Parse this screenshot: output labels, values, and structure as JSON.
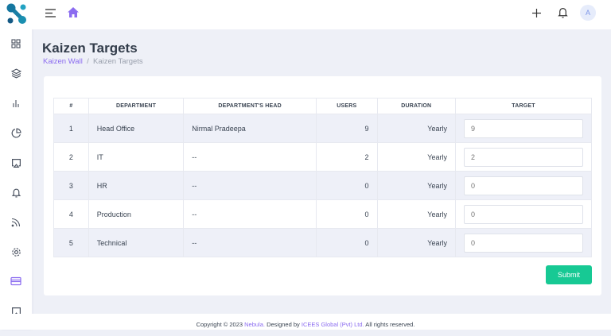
{
  "page": {
    "title": "Kaizen Targets",
    "breadcrumb": [
      {
        "label": "Kaizen Wall"
      },
      {
        "label": "Kaizen Targets"
      }
    ],
    "breadcrumb_sep": "/"
  },
  "topbar": {
    "avatar_initial": "A"
  },
  "table": {
    "headers": [
      "#",
      "DEPARTMENT",
      "DEPARTMENT'S HEAD",
      "USERS",
      "DURATION",
      "TARGET"
    ],
    "rows": [
      {
        "no": "1",
        "department": "Head Office",
        "head": "Nirmal Pradeepa",
        "users": "9",
        "duration": "Yearly",
        "target": "9"
      },
      {
        "no": "2",
        "department": "IT",
        "head": "--",
        "users": "2",
        "duration": "Yearly",
        "target": "2"
      },
      {
        "no": "3",
        "department": "HR",
        "head": "--",
        "users": "0",
        "duration": "Yearly",
        "target": "0"
      },
      {
        "no": "4",
        "department": "Production",
        "head": "--",
        "users": "0",
        "duration": "Yearly",
        "target": "0"
      },
      {
        "no": "5",
        "department": "Technical",
        "head": "--",
        "users": "0",
        "duration": "Yearly",
        "target": "0"
      }
    ]
  },
  "submit_label": "Submit",
  "footer": {
    "prefix": "Copyright © 2023 ",
    "brand": "Nebula.",
    "mid": " Designed by ",
    "company": "ICEES Global (Pvt) Ltd.",
    "suffix": " All rights reserved."
  },
  "colors": {
    "accent": "#8b6cf0",
    "submit": "#17c994",
    "logo": "#1a8fb0"
  }
}
